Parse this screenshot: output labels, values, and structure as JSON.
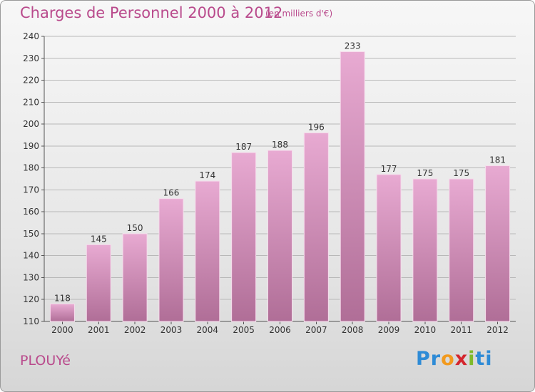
{
  "title": "Charges de Personnel 2000 à 2012",
  "subtitle": "(en milliers d'€)",
  "commune": "PLOUYé",
  "logo": {
    "letters": [
      "P",
      "r",
      "o",
      "x",
      "i",
      "t",
      "i"
    ],
    "colors": [
      "#2e8bd6",
      "#2e8bd6",
      "#f29a1e",
      "#d4262e",
      "#7fba2a",
      "#2e8bd6",
      "#2e8bd6"
    ]
  },
  "colors": {
    "bar_light": "#e8aad2",
    "bar_dark": "#b06e97",
    "title": "#b94a8c",
    "grid": "#b8b8b8"
  },
  "chart_data": {
    "type": "bar",
    "categories": [
      "2000",
      "2001",
      "2002",
      "2003",
      "2004",
      "2005",
      "2006",
      "2007",
      "2008",
      "2009",
      "2010",
      "2011",
      "2012"
    ],
    "values": [
      118,
      145,
      150,
      166,
      174,
      187,
      188,
      196,
      233,
      177,
      175,
      175,
      181
    ],
    "ylim": [
      110,
      240
    ],
    "yticks": [
      110,
      120,
      130,
      140,
      150,
      160,
      170,
      180,
      190,
      200,
      210,
      220,
      230,
      240
    ],
    "grid": true,
    "data_labels": [
      "118",
      "145",
      "150",
      "166",
      "174",
      "187",
      "188",
      "196",
      "233",
      "177",
      "175",
      "175",
      "181"
    ]
  }
}
